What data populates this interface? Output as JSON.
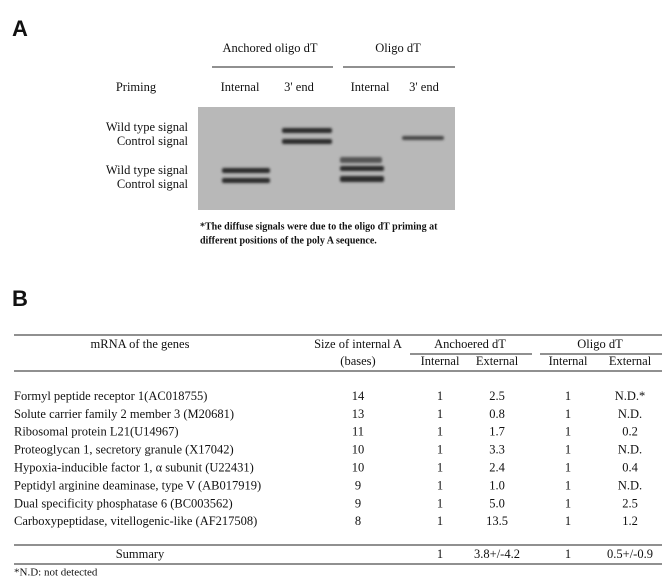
{
  "panel_a": {
    "label": "A",
    "groups": [
      "Anchored oligo dT",
      "Oligo dT"
    ],
    "priming": "Priming",
    "lanes": [
      "Internal",
      "3' end",
      "Internal",
      "3' end"
    ],
    "signals": [
      "Wild type signal",
      "Control signal",
      "Wild type signal",
      "Control signal"
    ],
    "note": [
      "*The diffuse signals were due to the oligo dT priming at",
      "different positions of the poly A sequence."
    ]
  },
  "panel_b": {
    "label": "B",
    "header": {
      "gene": "mRNA of the genes",
      "size": [
        "Size of internal A",
        "(bases)"
      ],
      "groups": [
        "Anchoered dT",
        "Oligo dT"
      ],
      "sub": [
        "Internal",
        "External",
        "Internal",
        "External"
      ]
    },
    "rows": [
      [
        "Formyl peptide receptor 1(AC018755)",
        "14",
        "1",
        "2.5",
        "1",
        "N.D.*"
      ],
      [
        "Solute carrier family 2 member 3 (M20681)",
        "13",
        "1",
        "0.8",
        "1",
        "N.D."
      ],
      [
        "Ribosomal protein L21(U14967)",
        "11",
        "1",
        "1.7",
        "1",
        "0.2"
      ],
      [
        "Proteoglycan 1, secretory granule (X17042)",
        "10",
        "1",
        "3.3",
        "1",
        "N.D."
      ],
      [
        "Hypoxia-inducible factor 1,   α subunit (U22431)",
        "10",
        "1",
        "2.4",
        "1",
        "0.4"
      ],
      [
        "Peptidyl arginine deaminase, type V (AB017919)",
        "9",
        "1",
        "1.0",
        "1",
        "N.D."
      ],
      [
        "Dual specificity phosphatase 6 (BC003562)",
        "9",
        "1",
        "5.0",
        "1",
        "2.5"
      ],
      [
        "Carboxypeptidase, vitellogenic-like (AF217508)",
        "8",
        "1",
        "13.5",
        "1",
        "1.2"
      ]
    ],
    "summary": [
      "Summary",
      "1",
      "3.8+/-4.2",
      "1",
      "0.5+/-0.9"
    ],
    "footnote": "*N.D: not detected"
  }
}
